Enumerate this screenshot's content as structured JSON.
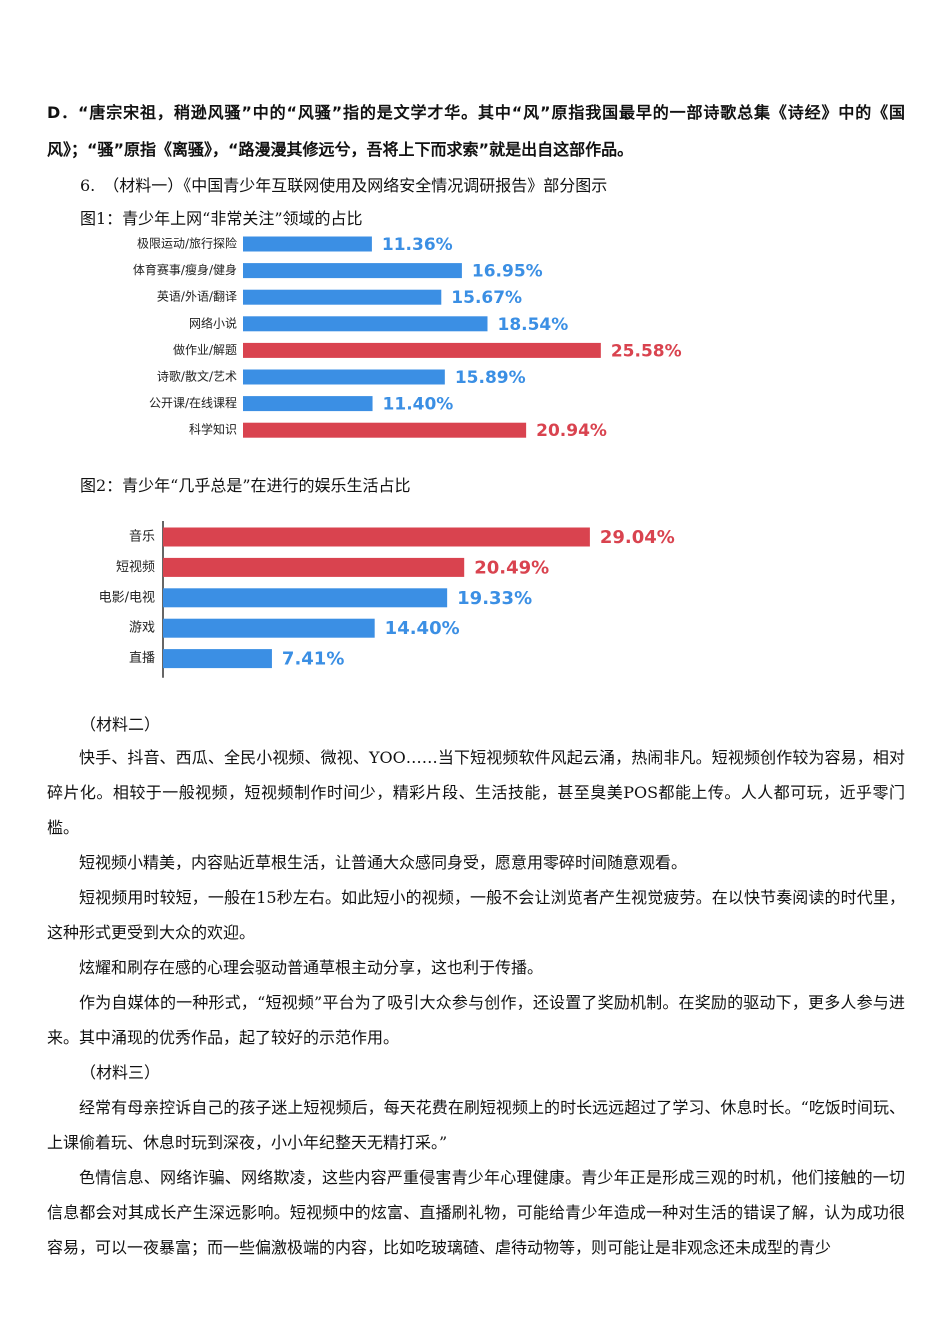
{
  "paragraph_d": "D．“唐宗宋祖，稍逊风骚”中的“风骚”指的是文学才华。其中“风”原指我国最早的一部诗歌总集《诗经》中的《国风》；“骚”原指《离骚》，“路漫漫其修远兮，吾将上下而求索”就是出自这部作品。",
  "question_6": "6.　（材料一）《中国青少年互联网使用及网络安全情况调研报告》部分图示",
  "chart_data": [
    {
      "type": "bar",
      "title": "图1：青少年上网“非常关注”领域的占比",
      "categories": [
        "极限运动/旅行探险",
        "体育赛事/瘦身/健身",
        "英语/外语/翻译",
        "网络小说",
        "做作业/解题",
        "诗歌/散文/艺术",
        "公开课/在线课程",
        "科学知识"
      ],
      "values": [
        11.36,
        16.95,
        15.67,
        18.54,
        25.58,
        15.89,
        11.4,
        20.94
      ],
      "value_labels": [
        "11.36%",
        "16.95%",
        "15.67%",
        "18.54%",
        "25.58%",
        "15.89%",
        "11.40%",
        "20.94%"
      ],
      "colors": [
        "#3b8fe4",
        "#3b8fe4",
        "#3b8fe4",
        "#3b8fe4",
        "#d9434f",
        "#3b8fe4",
        "#3b8fe4",
        "#d9434f"
      ]
    },
    {
      "type": "bar",
      "title": "图2：青少年“几乎总是”在进行的娱乐生活占比",
      "categories": [
        "音乐",
        "短视频",
        "电影/电视",
        "游戏",
        "直播"
      ],
      "values": [
        29.04,
        20.49,
        19.33,
        14.4,
        7.41
      ],
      "value_labels": [
        "29.04%",
        "20.49%",
        "19.33%",
        "14.40%",
        "7.41%"
      ],
      "colors": [
        "#d9434f",
        "#d9434f",
        "#3b8fe4",
        "#3b8fe4",
        "#3b8fe4"
      ]
    }
  ],
  "material_2": {
    "heading": "（材料二）",
    "paragraphs": [
      "快手、抖音、西瓜、全民小视频、微视、YOO……当下短视频软件风起云涌，热闹非凡。短视频创作较为容易，相对碎片化。相较于一般视频，短视频制作时间少，精彩片段、生活技能，甚至臭美POS都能上传。人人都可玩，近乎零门槛。",
      "短视频小精美，内容贴近草根生活，让普通大众感同身受，愿意用零碎时间随意观看。",
      "短视频用时较短，一般在15秒左右。如此短小的视频，一般不会让浏览者产生视觉疲劳。在以快节奏阅读的时代里，这种形式更受到大众的欢迎。",
      "炫耀和刷存在感的心理会驱动普通草根主动分享，这也利于传播。",
      "作为自媒体的一种形式，“短视频”平台为了吸引大众参与创作，还设置了奖励机制。在奖励的驱动下，更多人参与进来。其中涌现的优秀作品，起了较好的示范作用。"
    ]
  },
  "material_3": {
    "heading": "（材料三）",
    "paragraphs": [
      "经常有母亲控诉自己的孩子迷上短视频后，每天花费在刷短视频上的时长远远超过了学习、休息时长。“吃饭时间玩、上课偷着玩、休息时玩到深夜，小小年纪整天无精打采。”",
      "色情信息、网络诈骗、网络欺凌，这些内容严重侵害青少年心理健康。青少年正是形成三观的时机，他们接触的一切信息都会对其成长产生深远影响。短视频中的炫富、直播刷礼物，可能给青少年造成一种对生活的错误了解，认为成功很容易，可以一夜暴富；而一些偏激极端的内容，比如吃玻璃碴、虐待动物等，则可能让是非观念还未成型的青少"
    ]
  }
}
